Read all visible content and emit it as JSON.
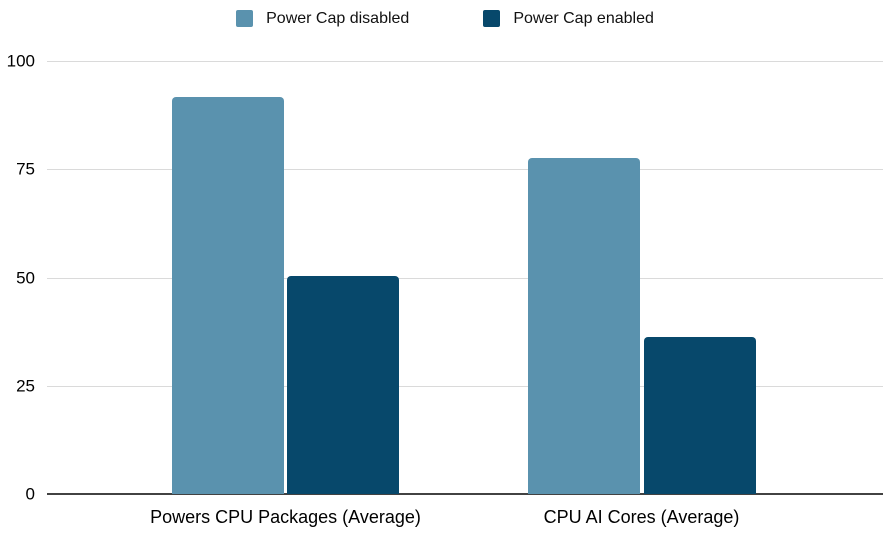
{
  "chart_data": {
    "type": "bar",
    "title": "",
    "xlabel": "",
    "ylabel": "",
    "categories": [
      "Powers CPU Packages (Average)",
      "CPU AI Cores (Average)"
    ],
    "series": [
      {
        "name": "Power Cap disabled",
        "color": "#5A92AE",
        "values": [
          91.8,
          77.7
        ]
      },
      {
        "name": "Power Cap enabled",
        "color": "#07486B",
        "values": [
          50.3,
          36.3
        ]
      }
    ],
    "ylim": [
      0,
      100
    ],
    "yticks": [
      0,
      25,
      50,
      75,
      100
    ],
    "grid": true,
    "legend_position": "top",
    "background_color": "#FFFFFF",
    "gridline_color": "#DADADA",
    "axis_line_color": "#424242",
    "text_color": "#000000"
  }
}
